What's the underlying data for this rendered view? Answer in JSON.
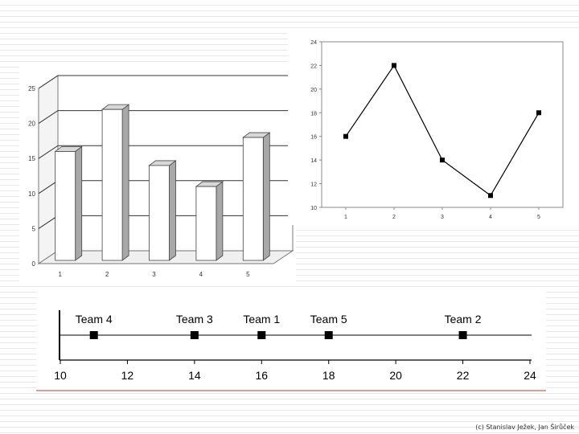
{
  "chart_data": [
    {
      "type": "bar",
      "style": "3d",
      "categories": [
        "1",
        "2",
        "3",
        "4",
        "5"
      ],
      "values": [
        16,
        22,
        14,
        11,
        18
      ],
      "ylim": [
        0,
        25
      ],
      "yticks": [
        "0",
        "5",
        "10",
        "15",
        "20",
        "25"
      ],
      "grid": true,
      "title": "",
      "xlabel": "",
      "ylabel": ""
    },
    {
      "type": "line",
      "x": [
        "1",
        "2",
        "3",
        "4",
        "5"
      ],
      "values": [
        16,
        22,
        14,
        11,
        18
      ],
      "ylim": [
        10,
        24
      ],
      "yticks": [
        "10",
        "12",
        "14",
        "16",
        "18",
        "20",
        "22",
        "24"
      ],
      "grid": false,
      "title": "",
      "xlabel": "",
      "ylabel": ""
    },
    {
      "type": "scatter",
      "style": "dot-plot",
      "points": [
        {
          "label": "Team 4",
          "x": 11
        },
        {
          "label": "Team 3",
          "x": 14
        },
        {
          "label": "Team 1",
          "x": 16
        },
        {
          "label": "Team 5",
          "x": 18
        },
        {
          "label": "Team 2",
          "x": 22
        }
      ],
      "xlim": [
        10,
        24
      ],
      "xticks": [
        "10",
        "12",
        "14",
        "16",
        "18",
        "20",
        "22",
        "24"
      ],
      "title": "",
      "xlabel": "",
      "ylabel": ""
    }
  ],
  "footer": "(c) Stanislav Ježek, Jan Širůček",
  "colors": {
    "bar_front": "#ffffff",
    "bar_top": "#d8d8d8",
    "bar_side": "#a8a8a8",
    "accent_line": "#c0392b"
  }
}
